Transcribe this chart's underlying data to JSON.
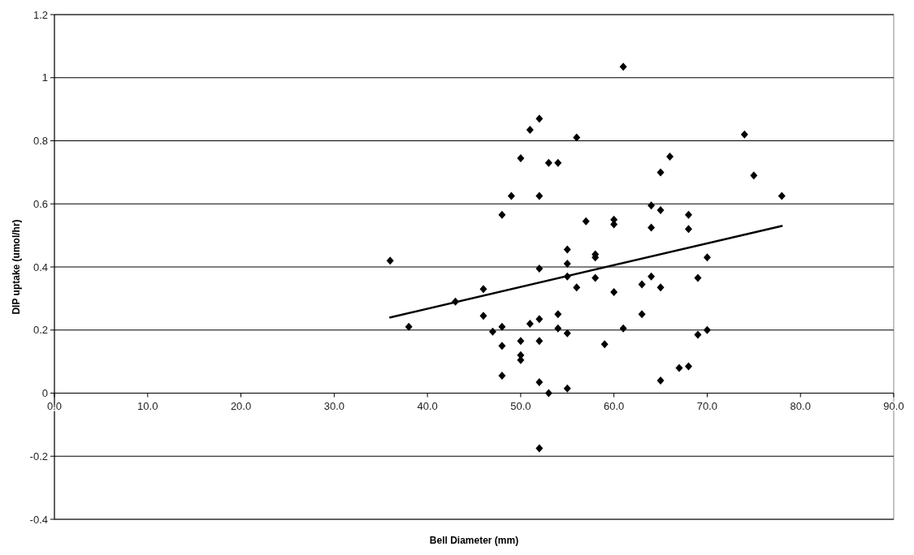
{
  "chart_data": {
    "type": "scatter",
    "xlabel": "Bell Diameter (mm)",
    "ylabel": "DIP uptake (umol/hr)",
    "xlim": [
      0,
      90
    ],
    "ylim": [
      -0.4,
      1.2
    ],
    "xticks": [
      {
        "value": 0,
        "label": "0.0"
      },
      {
        "value": 10,
        "label": "10.0"
      },
      {
        "value": 20,
        "label": "20.0"
      },
      {
        "value": 30,
        "label": "30.0"
      },
      {
        "value": 40,
        "label": "40.0"
      },
      {
        "value": 50,
        "label": "50.0"
      },
      {
        "value": 60,
        "label": "60.0"
      },
      {
        "value": 70,
        "label": "70.0"
      },
      {
        "value": 80,
        "label": "80.0"
      },
      {
        "value": 90,
        "label": "90.0"
      }
    ],
    "yticks": [
      -0.4,
      -0.2,
      0,
      0.2,
      0.4,
      0.6,
      0.8,
      1,
      1.2
    ],
    "grid": "y",
    "series": [
      {
        "marker": "diamond",
        "color": "#000000",
        "x": [
          36,
          38,
          43,
          46,
          46,
          47,
          48,
          48,
          48,
          48,
          49,
          50,
          50,
          50,
          50,
          51,
          51,
          52,
          52,
          52,
          52,
          52,
          52,
          52,
          53,
          53,
          54,
          54,
          54,
          55,
          55,
          55,
          55,
          55,
          56,
          56,
          57,
          58,
          58,
          58,
          59,
          60,
          60,
          60,
          61,
          61,
          63,
          63,
          64,
          64,
          64,
          65,
          65,
          65,
          65,
          66,
          67,
          68,
          68,
          68,
          69,
          69,
          70,
          70,
          74,
          75,
          78
        ],
        "values": [
          0.42,
          0.21,
          0.29,
          0.33,
          0.245,
          0.195,
          0.565,
          0.21,
          0.15,
          0.055,
          0.625,
          0.745,
          0.165,
          0.12,
          0.105,
          0.835,
          0.22,
          0.87,
          0.625,
          0.395,
          0.235,
          0.165,
          0.035,
          -0.175,
          0.73,
          0.0,
          0.73,
          0.25,
          0.205,
          0.455,
          0.41,
          0.37,
          0.19,
          0.015,
          0.81,
          0.335,
          0.545,
          0.44,
          0.43,
          0.365,
          0.155,
          0.55,
          0.535,
          0.32,
          1.035,
          0.205,
          0.345,
          0.25,
          0.595,
          0.525,
          0.37,
          0.7,
          0.58,
          0.335,
          0.04,
          0.75,
          0.08,
          0.565,
          0.52,
          0.085,
          0.365,
          0.185,
          0.43,
          0.2,
          0.82,
          0.69,
          0.625
        ]
      },
      {
        "type": "line",
        "color": "#000000",
        "x": [
          36,
          78
        ],
        "values": [
          0.24,
          0.53
        ]
      }
    ]
  }
}
